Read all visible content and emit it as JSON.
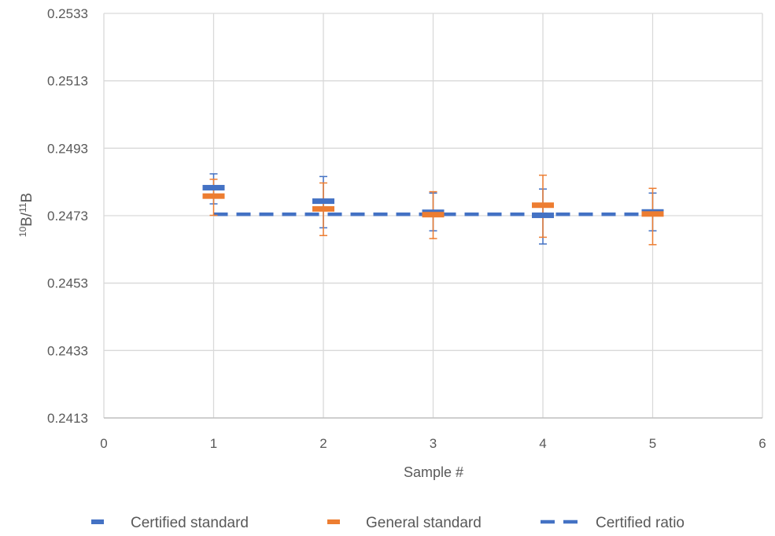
{
  "chart_data": {
    "type": "scatter",
    "title": "",
    "xlabel": "Sample #",
    "ylabel": {
      "parts": [
        {
          "text": "10",
          "sup": true
        },
        {
          "text": "B/",
          "sup": false
        },
        {
          "text": "11",
          "sup": true
        },
        {
          "text": "B",
          "sup": false
        }
      ]
    },
    "xlim": [
      0,
      6
    ],
    "ylim": [
      0.2413,
      0.2533
    ],
    "x_ticks": [
      "0",
      "1",
      "2",
      "3",
      "4",
      "5",
      "6"
    ],
    "x_tick_values": [
      0,
      1,
      2,
      3,
      4,
      5,
      6
    ],
    "y_ticks": [
      "0.2533",
      "0.2513",
      "0.2493",
      "0.2473",
      "0.2453",
      "0.2433",
      "0.2413"
    ],
    "y_tick_values": [
      0.2533,
      0.2513,
      0.2493,
      0.2473,
      0.2453,
      0.2433,
      0.2413
    ],
    "grid": true,
    "legend_position": "bottom",
    "series": [
      {
        "name": "Certified standard",
        "color": "#4472C4",
        "marker": "dash",
        "points": [
          {
            "x": 1,
            "y": 0.24813,
            "err_low": 0.24765,
            "err_high": 0.24854
          },
          {
            "x": 2,
            "y": 0.24773,
            "err_low": 0.24694,
            "err_high": 0.24846
          },
          {
            "x": 3,
            "y": 0.2474,
            "err_low": 0.24685,
            "err_high": 0.24797
          },
          {
            "x": 4,
            "y": 0.24731,
            "err_low": 0.24646,
            "err_high": 0.24809
          },
          {
            "x": 5,
            "y": 0.24741,
            "err_low": 0.24685,
            "err_high": 0.24797
          }
        ]
      },
      {
        "name": "General standard",
        "color": "#ED7D31",
        "marker": "dash",
        "points": [
          {
            "x": 1,
            "y": 0.24788,
            "err_low": 0.24731,
            "err_high": 0.24838
          },
          {
            "x": 2,
            "y": 0.2475,
            "err_low": 0.24671,
            "err_high": 0.24827
          },
          {
            "x": 3,
            "y": 0.24733,
            "err_low": 0.24662,
            "err_high": 0.24801
          },
          {
            "x": 4,
            "y": 0.24761,
            "err_low": 0.24666,
            "err_high": 0.2485
          },
          {
            "x": 5,
            "y": 0.24735,
            "err_low": 0.24644,
            "err_high": 0.24811
          }
        ]
      },
      {
        "name": "Certified ratio",
        "color": "#4472C4",
        "line_style": "dashed",
        "x": [
          1,
          5
        ],
        "y": [
          0.24734,
          0.24734
        ]
      }
    ]
  }
}
